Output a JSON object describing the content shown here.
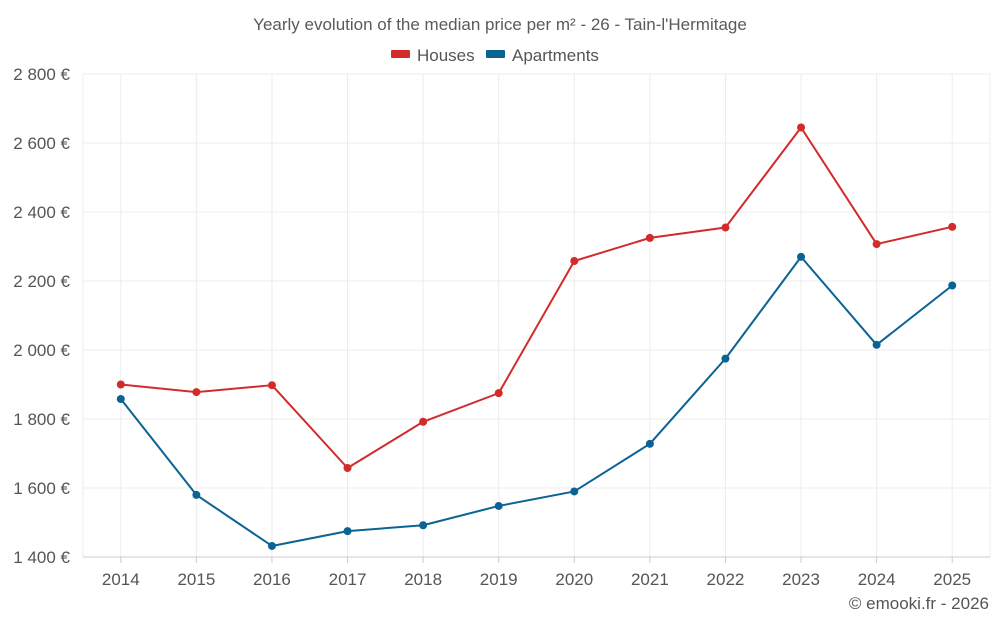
{
  "chart_data": {
    "type": "line",
    "title": "Yearly evolution of the median price per m² - 26 - Tain-l'Hermitage",
    "categories": [
      "2014",
      "2015",
      "2016",
      "2017",
      "2018",
      "2019",
      "2020",
      "2021",
      "2022",
      "2023",
      "2024",
      "2025"
    ],
    "series": [
      {
        "name": "Houses",
        "color": "#d32a2a",
        "values": [
          1900,
          1878,
          1898,
          1658,
          1792,
          1875,
          2258,
          2325,
          2355,
          2645,
          2307,
          2357
        ]
      },
      {
        "name": "Apartments",
        "color": "#0b6394",
        "values": [
          1858,
          1580,
          1432,
          1475,
          1492,
          1548,
          1590,
          1728,
          1975,
          2270,
          2015,
          2187
        ]
      }
    ],
    "ylim": [
      1400,
      2800
    ],
    "yticks": [
      1400,
      1600,
      1800,
      2000,
      2200,
      2400,
      2600,
      2800
    ],
    "ytick_labels": [
      "1 400 €",
      "1 600 €",
      "1 800 €",
      "2 000 €",
      "2 200 €",
      "2 400 €",
      "2 600 €",
      "2 800 €"
    ],
    "xlabel": "",
    "ylabel": "",
    "grid": true,
    "legend": "top-center"
  },
  "credit": "© emooki.fr - 2026"
}
